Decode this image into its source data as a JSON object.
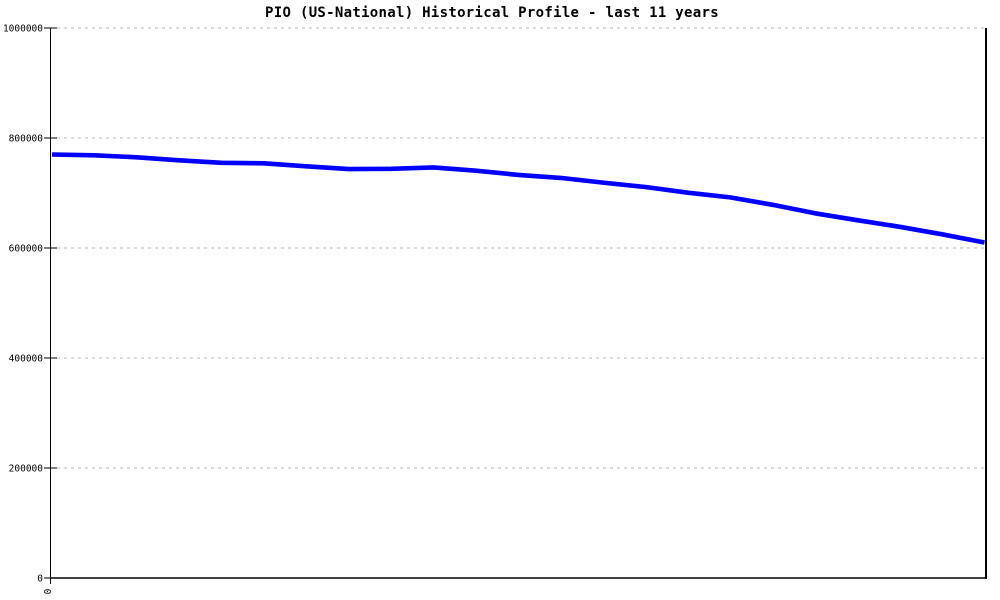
{
  "chart_data": {
    "type": "line",
    "title": "PIO (US-National) Historical Profile - last 11 years",
    "xlabel": "",
    "ylabel": "",
    "legend": "none",
    "grid": "horizontal-dashed",
    "xlim": [
      0,
      11
    ],
    "ylim": [
      0,
      1000000
    ],
    "x_axis": {
      "tick_values": [
        0
      ],
      "tick_labels": [
        "0"
      ],
      "tick_label_rotation_deg": -90
    },
    "y_axis": {
      "tick_values": [
        0,
        200000,
        400000,
        600000,
        800000,
        1000000
      ],
      "tick_labels": [
        "0",
        "200000",
        "400000",
        "600000",
        "800000",
        "1000000"
      ]
    },
    "series": [
      {
        "name": "PIO (US-National)",
        "x": [
          0,
          0.5,
          1,
          1.5,
          2,
          2.5,
          3,
          3.5,
          4,
          4.5,
          5,
          5.5,
          6,
          6.5,
          7,
          7.5,
          8,
          8.5,
          9,
          9.5,
          10,
          10.5,
          11
        ],
        "values": [
          770000,
          768500,
          765000,
          759500,
          755000,
          754000,
          748500,
          743500,
          744000,
          746500,
          740500,
          733000,
          727500,
          719000,
          711000,
          700500,
          692000,
          678500,
          663000,
          650500,
          638500,
          625000,
          610000
        ]
      }
    ]
  },
  "colors": {
    "background": "#ffffff",
    "title_text": "#000000",
    "axis": "#000000",
    "grid": "#b4b4b4",
    "line": "#0000ff"
  }
}
